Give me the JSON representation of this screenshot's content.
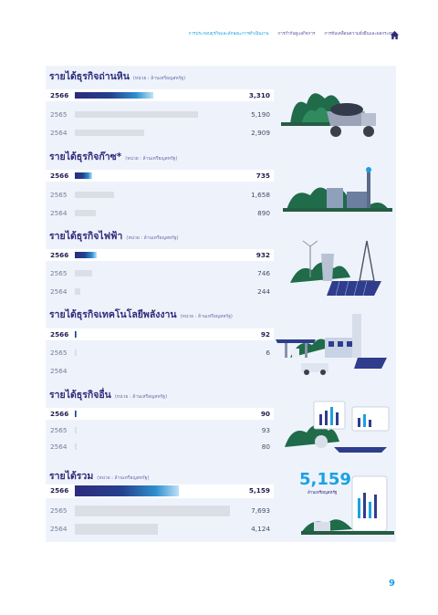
{
  "nav": {
    "items": [
      "การประกอบธุรกิจและลักษณะการดำเนินงาน",
      "การกำกับดูแลกิจการ",
      "การขับเคลื่อนความยั่งยืนและผลกระทบ"
    ]
  },
  "unit_label": "(หน่วย : ล้านเหรียญสหรัฐ)",
  "sections": [
    {
      "title": "รายได้ธุรกิจถ่านหิน",
      "rows": [
        {
          "year": "2566",
          "value": "3,310"
        },
        {
          "year": "2565",
          "value": "5,190"
        },
        {
          "year": "2564",
          "value": "2,909"
        }
      ]
    },
    {
      "title": "รายได้ธุรกิจก๊าซ*",
      "rows": [
        {
          "year": "2566",
          "value": "735"
        },
        {
          "year": "2565",
          "value": "1,658"
        },
        {
          "year": "2564",
          "value": "890"
        }
      ]
    },
    {
      "title": "รายได้ธุรกิจไฟฟ้า",
      "rows": [
        {
          "year": "2566",
          "value": "932"
        },
        {
          "year": "2565",
          "value": "746"
        },
        {
          "year": "2564",
          "value": "244"
        }
      ]
    },
    {
      "title": "รายได้ธุรกิจเทคโนโลยีพลังงาน",
      "rows": [
        {
          "year": "2566",
          "value": "92"
        },
        {
          "year": "2565",
          "value": "6"
        },
        {
          "year": "2564",
          "value": ""
        }
      ]
    },
    {
      "title": "รายได้ธุรกิจอื่น",
      "rows": [
        {
          "year": "2566",
          "value": "90"
        },
        {
          "year": "2565",
          "value": "93"
        },
        {
          "year": "2564",
          "value": "80"
        }
      ]
    },
    {
      "title": "รายได้รวม",
      "rows": [
        {
          "year": "2566",
          "value": "5,159"
        },
        {
          "year": "2565",
          "value": "7,693"
        },
        {
          "year": "2564",
          "value": "4,124"
        }
      ]
    }
  ],
  "total": {
    "value": "5,159",
    "unit": "ล้านเหรียญสหรัฐ"
  },
  "page_number": "9",
  "colors": {
    "accent": "#1ba1e2",
    "navy": "#2e2b7a",
    "panel": "#eef3fb",
    "green": "#1f6b4a"
  },
  "chart_data": [
    {
      "type": "bar",
      "title": "รายได้ธุรกิจถ่านหิน",
      "categories": [
        "2566",
        "2565",
        "2564"
      ],
      "values": [
        3310,
        5190,
        2909
      ]
    },
    {
      "type": "bar",
      "title": "รายได้ธุรกิจก๊าซ*",
      "categories": [
        "2566",
        "2565",
        "2564"
      ],
      "values": [
        735,
        1658,
        890
      ]
    },
    {
      "type": "bar",
      "title": "รายได้ธุรกิจไฟฟ้า",
      "categories": [
        "2566",
        "2565",
        "2564"
      ],
      "values": [
        932,
        746,
        244
      ]
    },
    {
      "type": "bar",
      "title": "รายได้ธุรกิจเทคโนโลยีพลังงาน",
      "categories": [
        "2566",
        "2565",
        "2564"
      ],
      "values": [
        92,
        6,
        null
      ]
    },
    {
      "type": "bar",
      "title": "รายได้ธุรกิจอื่น",
      "categories": [
        "2566",
        "2565",
        "2564"
      ],
      "values": [
        90,
        93,
        80
      ]
    },
    {
      "type": "bar",
      "title": "รายได้รวม",
      "categories": [
        "2566",
        "2565",
        "2564"
      ],
      "values": [
        5159,
        7693,
        4124
      ]
    }
  ]
}
